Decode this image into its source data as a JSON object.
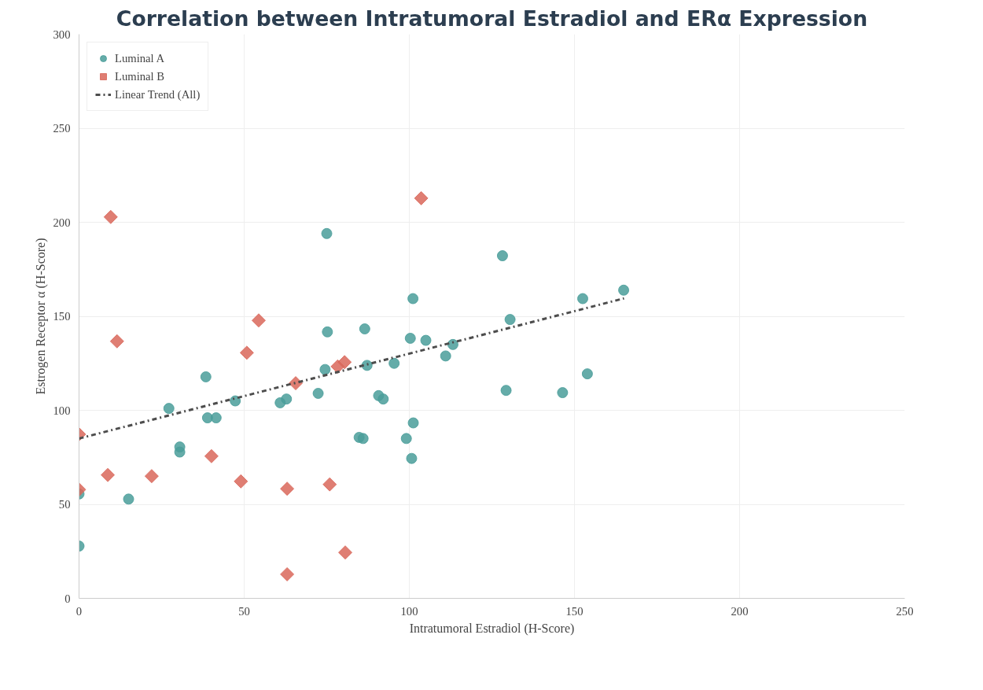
{
  "chart_data": {
    "type": "scatter",
    "title": "Correlation between Intratumoral Estradiol and ERα Expression",
    "xlabel": "Intratumoral Estradiol (H-Score)",
    "ylabel": "Estrogen Receptor α (H-Score)",
    "xlim": [
      0,
      250
    ],
    "ylim": [
      0,
      300
    ],
    "xticks": [
      0,
      50,
      100,
      150,
      200,
      250
    ],
    "yticks": [
      0,
      50,
      100,
      150,
      200,
      250,
      300
    ],
    "grid": true,
    "legend": "top left",
    "series": [
      {
        "name": "Luminal A",
        "marker": "circle",
        "color": "#4a9e9a",
        "x": [
          0,
          0,
          15,
          27.2,
          30.5,
          30.5,
          38.4,
          38.9,
          41.5,
          47.3,
          60.9,
          62.8,
          72.4,
          74.5,
          75,
          75.2,
          84.8,
          86,
          86.5,
          87.2,
          90.7,
          92.1,
          95.4,
          99.1,
          100.3,
          101.1,
          101.2,
          100.7,
          105,
          111,
          113.2,
          128.2,
          129.3,
          130.5,
          146.4,
          152.5,
          153.9,
          164.9
        ],
        "values": [
          27.8,
          55.5,
          52.8,
          101,
          80.5,
          77.8,
          117.8,
          96,
          96,
          105,
          104,
          106,
          109,
          121.7,
          194,
          141.7,
          85.6,
          85,
          143.3,
          123.9,
          107.8,
          106,
          125,
          85,
          138.3,
          159.4,
          93.3,
          74.4,
          137.2,
          128.9,
          135,
          182.2,
          110.6,
          148.3,
          109.4,
          159.4,
          119.4,
          163.9
        ]
      },
      {
        "name": "Luminal B",
        "marker": "diamond",
        "color": "#d9675a",
        "x": [
          0,
          0,
          8.7,
          9.6,
          11.5,
          22,
          40.1,
          49,
          50.8,
          54.4,
          65.6,
          63,
          63,
          75.9,
          78.3,
          80.4,
          80.6,
          103.6
        ],
        "values": [
          87.2,
          57.8,
          65.6,
          202.8,
          136.7,
          65,
          75.6,
          62.2,
          130.6,
          147.8,
          114.4,
          58.3,
          12.8,
          60.6,
          123.3,
          125.6,
          24.4,
          212.8
        ]
      },
      {
        "name": "Linear Trend (All)",
        "type": "line",
        "line_style": "dashdot",
        "color": "#4d4d4d",
        "x": [
          0,
          165
        ],
        "values": [
          85,
          159.5
        ]
      }
    ]
  }
}
